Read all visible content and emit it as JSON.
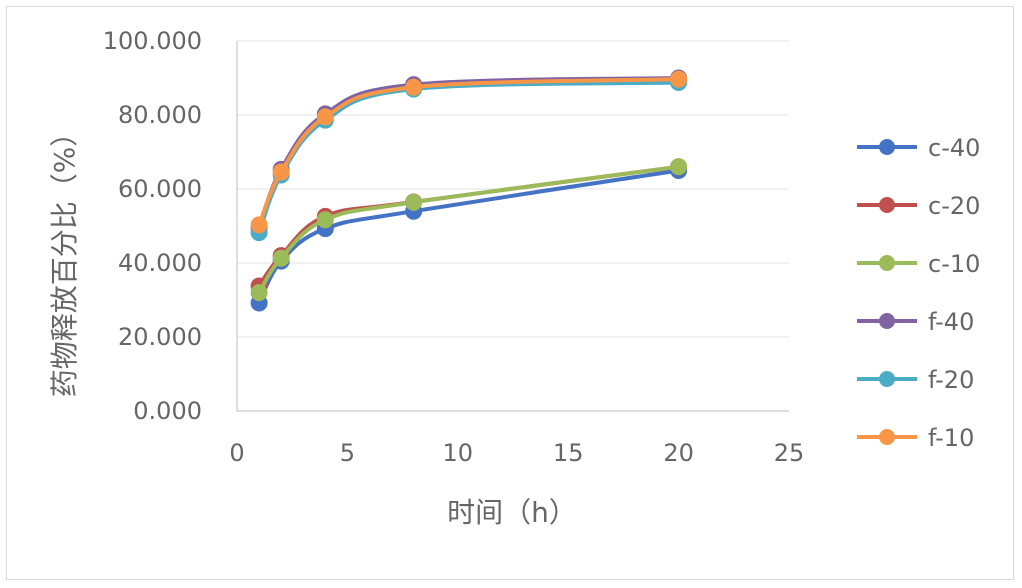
{
  "chart_data": {
    "type": "scatter",
    "title": "",
    "xlabel": "时间（h）",
    "ylabel": "药物释放百分比（%）",
    "xlim": [
      0,
      25
    ],
    "ylim": [
      0,
      100
    ],
    "x_ticks": [
      "0",
      "5",
      "10",
      "15",
      "20",
      "25"
    ],
    "y_ticks": [
      "0.000",
      "20.000",
      "40.000",
      "60.000",
      "80.000",
      "100.000"
    ],
    "grid": "horizontal",
    "legend_position": "right",
    "x": [
      1,
      2,
      4,
      8,
      20
    ],
    "series": [
      {
        "name": "c-40",
        "color": "#4472c4",
        "values": [
          29.2,
          40.5,
          49.3,
          54.0,
          65.0
        ]
      },
      {
        "name": "c-20",
        "color": "#c0504d",
        "values": [
          33.8,
          42.0,
          52.6,
          56.5,
          66.0
        ]
      },
      {
        "name": "c-10",
        "color": "#9bbb59",
        "values": [
          32.0,
          41.3,
          51.7,
          56.4,
          66.0
        ]
      },
      {
        "name": "f-40",
        "color": "#8064a2",
        "values": [
          49.5,
          65.3,
          80.3,
          88.2,
          90.0
        ]
      },
      {
        "name": "f-20",
        "color": "#4bacc6",
        "values": [
          48.2,
          63.8,
          78.6,
          87.0,
          88.8
        ]
      },
      {
        "name": "f-10",
        "color": "#f79646",
        "values": [
          50.3,
          64.6,
          79.5,
          87.5,
          89.7
        ]
      }
    ]
  }
}
